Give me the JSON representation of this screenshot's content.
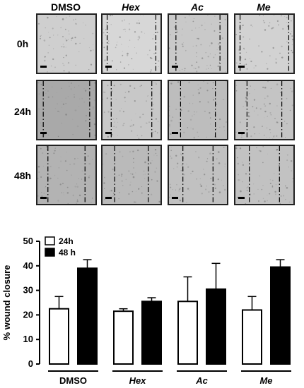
{
  "micrographs": {
    "columns": [
      {
        "label": "DMSO",
        "italic": false
      },
      {
        "label": "Hex",
        "italic": true
      },
      {
        "label": "Ac",
        "italic": true
      },
      {
        "label": "Me",
        "italic": true
      }
    ],
    "rows": [
      "0h",
      "24h",
      "48h"
    ]
  },
  "chart_data": {
    "type": "bar",
    "categories": [
      "DMSO",
      "Hex",
      "Ac",
      "Me"
    ],
    "category_italic": [
      false,
      true,
      true,
      true
    ],
    "series": [
      {
        "name": "24h",
        "fill": "#ffffff",
        "values": [
          22.5,
          21.5,
          25.5,
          22
        ],
        "errors": [
          5,
          1,
          10,
          5.5
        ]
      },
      {
        "name": "48 h",
        "fill": "#000000",
        "values": [
          39,
          25.5,
          30.5,
          39.5
        ],
        "errors": [
          3.5,
          1.5,
          10.5,
          3
        ]
      }
    ],
    "ylabel": "% wound closure",
    "ylim": [
      0,
      50
    ],
    "yticks": [
      0,
      10,
      20,
      30,
      40,
      50
    ],
    "legend": "top-left",
    "grid": false
  }
}
